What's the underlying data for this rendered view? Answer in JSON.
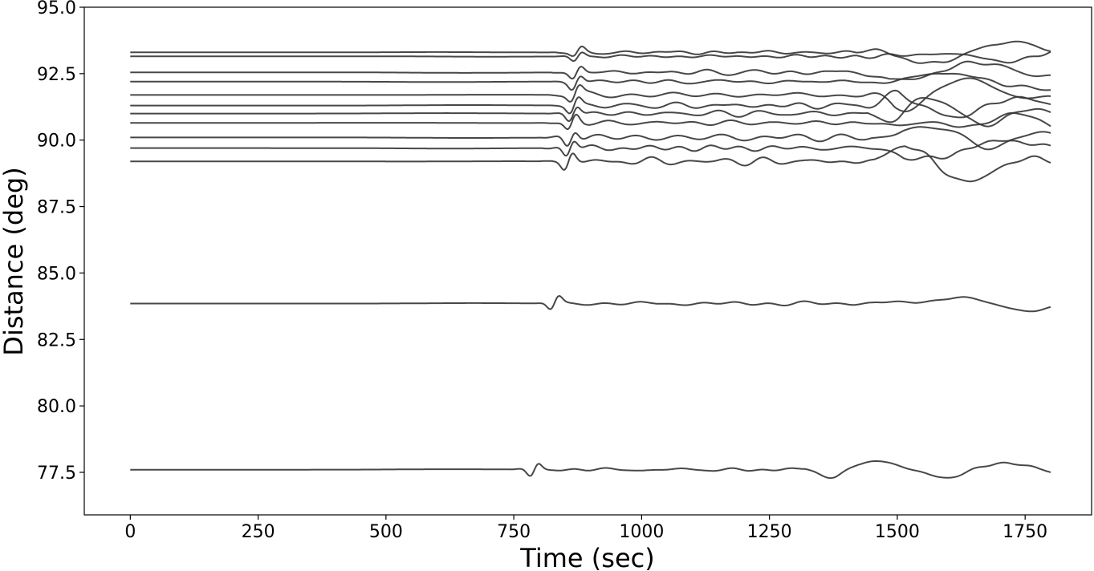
{
  "chart_data": {
    "type": "line",
    "xlabel": "Time (sec)",
    "ylabel": "Distance (deg)",
    "xlim": [
      -90,
      1880
    ],
    "ylim": [
      75.9,
      95.0
    ],
    "xticks": [
      0,
      250,
      500,
      750,
      1000,
      1250,
      1500,
      1750
    ],
    "xtick_labels": [
      "0",
      "250",
      "500",
      "750",
      "1000",
      "1250",
      "1500",
      "1750"
    ],
    "yticks": [
      77.5,
      80.0,
      82.5,
      85.0,
      87.5,
      90.0,
      92.5,
      95.0
    ],
    "ytick_labels": [
      "77.5",
      "80.0",
      "82.5",
      "85.0",
      "87.5",
      "90.0",
      "92.5",
      "95.0"
    ],
    "grid": false,
    "line_color": "#333333",
    "trace_time_range": [
      0,
      1800
    ],
    "traces": [
      {
        "distance": 93.3,
        "onset": 820,
        "p_time": 875,
        "late_time": 1500,
        "amp": 0.22
      },
      {
        "distance": 93.15,
        "onset": 820,
        "p_time": 875,
        "late_time": 1500,
        "amp": 0.22
      },
      {
        "distance": 92.55,
        "onset": 820,
        "p_time": 873,
        "late_time": 1505,
        "amp": 0.3
      },
      {
        "distance": 92.2,
        "onset": 820,
        "p_time": 872,
        "late_time": 1510,
        "amp": 0.32
      },
      {
        "distance": 91.7,
        "onset": 815,
        "p_time": 870,
        "late_time": 1515,
        "amp": 0.34
      },
      {
        "distance": 91.3,
        "onset": 815,
        "p_time": 868,
        "late_time": 1520,
        "amp": 0.36
      },
      {
        "distance": 91.0,
        "onset": 812,
        "p_time": 866,
        "late_time": 1522,
        "amp": 0.36
      },
      {
        "distance": 90.65,
        "onset": 810,
        "p_time": 864,
        "late_time": 1525,
        "amp": 0.38
      },
      {
        "distance": 90.1,
        "onset": 805,
        "p_time": 862,
        "late_time": 1530,
        "amp": 0.38
      },
      {
        "distance": 89.7,
        "onset": 805,
        "p_time": 860,
        "late_time": 1532,
        "amp": 0.4
      },
      {
        "distance": 89.2,
        "onset": 800,
        "p_time": 857,
        "late_time": 1535,
        "amp": 0.42
      },
      {
        "distance": 83.85,
        "onset": 770,
        "p_time": 830,
        "late_time": 1480,
        "amp": 0.32
      },
      {
        "distance": 77.6,
        "onset": 740,
        "p_time": 790,
        "late_time": 1400,
        "amp": 0.32
      }
    ]
  }
}
